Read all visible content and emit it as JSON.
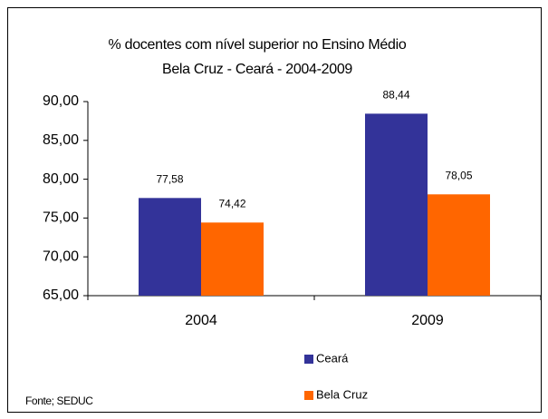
{
  "chart_data": {
    "type": "bar",
    "title": "% docentes com nível  superior no Ensino Médio",
    "subtitle": "Bela Cruz  -  Ceará - 2004-2009",
    "source": "Fonte; SEDUC",
    "categories": [
      "2004",
      "2009"
    ],
    "series": [
      {
        "name": "Ceará",
        "color": "#333399",
        "values": [
          77.58,
          88.44
        ],
        "value_labels": [
          "77,58",
          "88,44"
        ]
      },
      {
        "name": "Bela Cruz",
        "color": "#ff6600",
        "values": [
          74.42,
          78.05
        ],
        "value_labels": [
          "74,42",
          "78,05"
        ]
      }
    ],
    "ylim": [
      65,
      90
    ],
    "yticks": [
      {
        "value": 65,
        "label": "65,00"
      },
      {
        "value": 70,
        "label": "70,00"
      },
      {
        "value": 75,
        "label": "75,00"
      },
      {
        "value": 80,
        "label": "80,00"
      },
      {
        "value": 85,
        "label": "85,00"
      },
      {
        "value": 90,
        "label": "90,00"
      }
    ],
    "grid": false,
    "legend": "bottom"
  }
}
